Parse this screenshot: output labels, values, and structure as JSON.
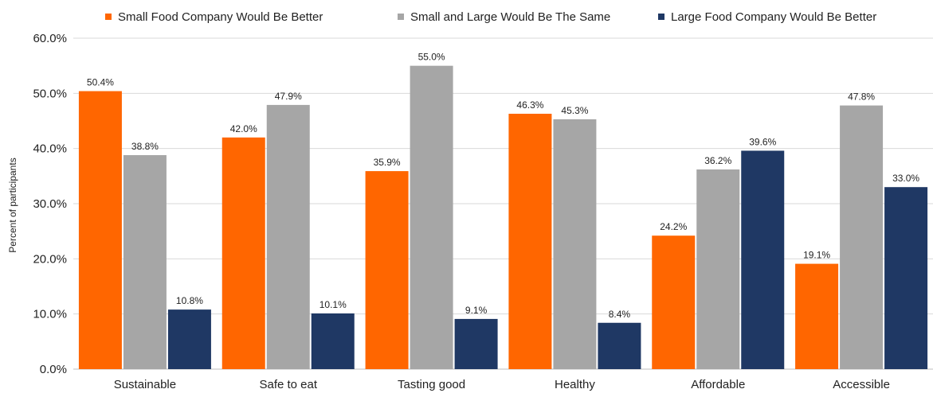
{
  "chart_data": {
    "type": "bar",
    "categories": [
      "Sustainable",
      "Safe to eat",
      "Tasting good",
      "Healthy",
      "Affordable",
      "Accessible"
    ],
    "series": [
      {
        "name": "Small Food Company Would Be Better",
        "color": "#FF6600",
        "values": [
          50.4,
          42.0,
          35.9,
          46.3,
          24.2,
          19.1
        ],
        "labels": [
          "50.4%",
          "42.0%",
          "35.9%",
          "46.3%",
          "24.2%",
          "19.1%"
        ]
      },
      {
        "name": "Small and Large Would Be The Same",
        "color": "#A6A6A6",
        "values": [
          38.8,
          47.9,
          55.0,
          45.3,
          36.2,
          47.8
        ],
        "labels": [
          "38.8%",
          "47.9%",
          "55.0%",
          "45.3%",
          "36.2%",
          "47.8%"
        ]
      },
      {
        "name": "Large Food Company Would Be Better",
        "color": "#1F3864",
        "values": [
          10.8,
          10.1,
          9.1,
          8.4,
          39.6,
          33.0
        ],
        "labels": [
          "10.8%",
          "10.1%",
          "9.1%",
          "8.4%",
          "39.6%",
          "33.0%"
        ]
      }
    ],
    "ylim": [
      0,
      60
    ],
    "yticks": [
      "0.0%",
      "10.0%",
      "20.0%",
      "30.0%",
      "40.0%",
      "50.0%",
      "60.0%"
    ],
    "ylabel": "Percent of participants",
    "xlabel": "",
    "legend_position": "top",
    "grid": true
  }
}
